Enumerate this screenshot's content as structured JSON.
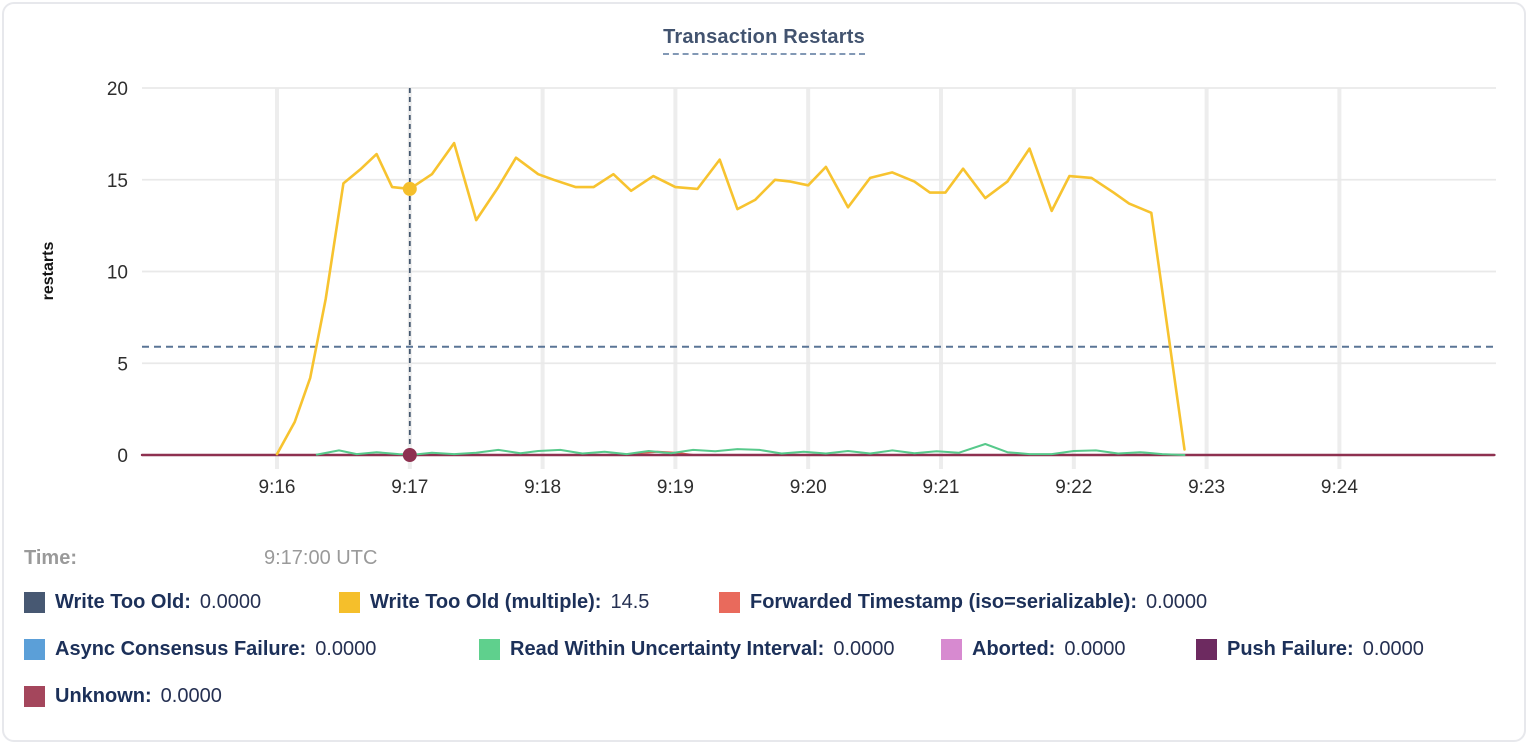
{
  "tooltip": {
    "time_label": "Time:",
    "time_value": "9:17:00 UTC"
  },
  "legend": {
    "items": [
      {
        "label": "Write Too Old:",
        "value": "0.0000",
        "color": "#475872"
      },
      {
        "label": "Write Too Old (multiple):",
        "value": "14.5",
        "color": "#f5bf2b"
      },
      {
        "label": "Forwarded Timestamp (iso=serializable):",
        "value": "0.0000",
        "color": "#e96a5c"
      },
      {
        "label": "Async Consensus Failure:",
        "value": "0.0000",
        "color": "#5b9fd8"
      },
      {
        "label": "Read Within Uncertainty Interval:",
        "value": "0.0000",
        "color": "#5fd08d"
      },
      {
        "label": "Aborted:",
        "value": "0.0000",
        "color": "#d78ad0"
      },
      {
        "label": "Push Failure:",
        "value": "0.0000",
        "color": "#6d2a60"
      },
      {
        "label": "Unknown:",
        "value": "0.0000",
        "color": "#a4465c"
      }
    ]
  },
  "chart_data": {
    "type": "line",
    "title": "Transaction Restarts",
    "ylabel": "restarts",
    "ylim": [
      0,
      20
    ],
    "yticks": [
      0,
      5,
      10,
      15,
      20
    ],
    "x_axis": {
      "tick_labels": [
        "9:16",
        "9:17",
        "9:18",
        "9:19",
        "9:20",
        "9:21",
        "9:22",
        "9:23",
        "9:24"
      ],
      "tick_minutes": [
        0,
        1,
        2,
        3,
        4,
        5,
        6,
        7,
        8
      ],
      "time_zone": "UTC"
    },
    "grid": true,
    "reference_line_value": 5.9,
    "crosshair": {
      "time": "9:17:00 UTC",
      "t_seconds": 60,
      "color": "#44576e",
      "points": [
        {
          "series": "write_too_old_multiple",
          "t": 60,
          "v": 14.5,
          "color": "#f5bf2b"
        },
        {
          "series": "unknown",
          "t": 60,
          "v": 0,
          "color": "#8e3150"
        }
      ]
    },
    "series": [
      {
        "key": "write_too_old",
        "name": "Write Too Old",
        "color": "#475872",
        "width": 2,
        "points": [
          [
            -61,
            0
          ],
          [
            550,
            0
          ]
        ]
      },
      {
        "key": "async_consensus_failure",
        "name": "Async Consensus Failure",
        "color": "#5b9fd8",
        "width": 2,
        "points": [
          [
            -61,
            0
          ],
          [
            550,
            0
          ]
        ]
      },
      {
        "key": "aborted",
        "name": "Aborted",
        "color": "#d78ad0",
        "width": 2,
        "points": [
          [
            -61,
            0
          ],
          [
            550,
            0
          ]
        ]
      },
      {
        "key": "push_failure",
        "name": "Push Failure",
        "color": "#6d2a60",
        "width": 2,
        "points": [
          [
            -61,
            0
          ],
          [
            550,
            0
          ]
        ]
      },
      {
        "key": "forwarded_timestamp",
        "name": "Forwarded Timestamp (iso=serializable)",
        "color": "#de5a4e",
        "width": 2,
        "points": [
          [
            -61,
            0
          ],
          [
            155,
            0
          ],
          [
            163,
            0.1
          ],
          [
            172,
            0.18
          ],
          [
            180,
            0.12
          ],
          [
            188,
            0
          ],
          [
            550,
            0
          ]
        ]
      },
      {
        "key": "unknown",
        "name": "Unknown",
        "color": "#8e3150",
        "width": 2.4,
        "points": [
          [
            -61,
            0
          ],
          [
            550,
            0
          ]
        ]
      },
      {
        "key": "read_within_uncertainty",
        "name": "Read Within Uncertainty Interval",
        "color": "#57c98b",
        "width": 2,
        "points": [
          [
            18,
            0.02
          ],
          [
            28,
            0.25
          ],
          [
            36,
            0.05
          ],
          [
            45,
            0.15
          ],
          [
            55,
            0.05
          ],
          [
            62,
            0.02
          ],
          [
            70,
            0.12
          ],
          [
            80,
            0.05
          ],
          [
            90,
            0.12
          ],
          [
            100,
            0.28
          ],
          [
            110,
            0.1
          ],
          [
            118,
            0.22
          ],
          [
            128,
            0.28
          ],
          [
            138,
            0.08
          ],
          [
            148,
            0.18
          ],
          [
            158,
            0.05
          ],
          [
            168,
            0.22
          ],
          [
            178,
            0.1
          ],
          [
            188,
            0.28
          ],
          [
            198,
            0.2
          ],
          [
            208,
            0.32
          ],
          [
            218,
            0.28
          ],
          [
            228,
            0.08
          ],
          [
            238,
            0.18
          ],
          [
            248,
            0.08
          ],
          [
            258,
            0.22
          ],
          [
            268,
            0.08
          ],
          [
            278,
            0.25
          ],
          [
            288,
            0.1
          ],
          [
            298,
            0.2
          ],
          [
            308,
            0.12
          ],
          [
            320,
            0.6
          ],
          [
            330,
            0.15
          ],
          [
            340,
            0.05
          ],
          [
            350,
            0.05
          ],
          [
            360,
            0.22
          ],
          [
            370,
            0.25
          ],
          [
            380,
            0.08
          ],
          [
            390,
            0.15
          ],
          [
            400,
            0.05
          ],
          [
            410,
            0
          ]
        ]
      },
      {
        "key": "write_too_old_multiple",
        "name": "Write Too Old (multiple)",
        "color": "#f7c32f",
        "width": 2.6,
        "points": [
          [
            0,
            0.05
          ],
          [
            8,
            1.8
          ],
          [
            15,
            4.2
          ],
          [
            22,
            8.5
          ],
          [
            30,
            14.8
          ],
          [
            38,
            15.6
          ],
          [
            45,
            16.4
          ],
          [
            52,
            14.6
          ],
          [
            60,
            14.5
          ],
          [
            70,
            15.3
          ],
          [
            80,
            17.0
          ],
          [
            90,
            12.8
          ],
          [
            100,
            14.6
          ],
          [
            108,
            16.2
          ],
          [
            118,
            15.3
          ],
          [
            125,
            15.0
          ],
          [
            135,
            14.6
          ],
          [
            143,
            14.6
          ],
          [
            152,
            15.3
          ],
          [
            160,
            14.4
          ],
          [
            170,
            15.2
          ],
          [
            180,
            14.6
          ],
          [
            190,
            14.5
          ],
          [
            200,
            16.1
          ],
          [
            208,
            13.4
          ],
          [
            216,
            13.9
          ],
          [
            225,
            15.0
          ],
          [
            232,
            14.9
          ],
          [
            240,
            14.7
          ],
          [
            248,
            15.7
          ],
          [
            258,
            13.5
          ],
          [
            268,
            15.1
          ],
          [
            278,
            15.4
          ],
          [
            288,
            14.9
          ],
          [
            295,
            14.3
          ],
          [
            302,
            14.3
          ],
          [
            310,
            15.6
          ],
          [
            320,
            14.0
          ],
          [
            330,
            14.9
          ],
          [
            340,
            16.7
          ],
          [
            350,
            13.3
          ],
          [
            358,
            15.2
          ],
          [
            368,
            15.1
          ],
          [
            378,
            14.3
          ],
          [
            385,
            13.7
          ],
          [
            395,
            13.2
          ],
          [
            410,
            0.3
          ]
        ]
      }
    ]
  }
}
